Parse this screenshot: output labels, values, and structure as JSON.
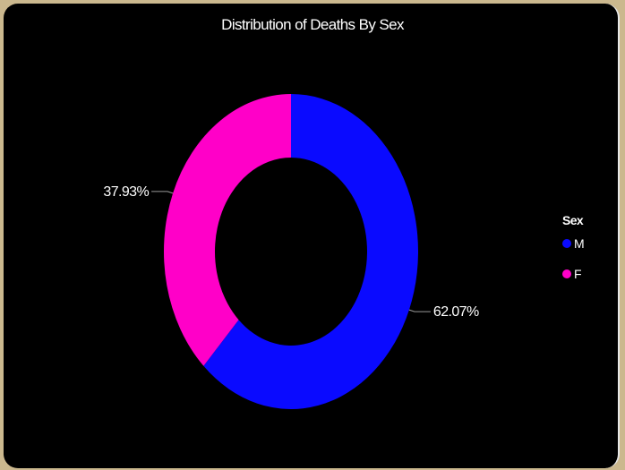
{
  "chart_data": {
    "type": "pie",
    "variant": "donut",
    "title": "Distribution of Deaths By Sex",
    "legend_title": "Sex",
    "legend_position": "right",
    "categories": [
      "M",
      "F"
    ],
    "values": [
      62.07,
      37.93
    ],
    "data_labels": [
      "62.07%",
      "37.93%"
    ],
    "colors": [
      "#0a0aff",
      "#ff00c8"
    ]
  }
}
